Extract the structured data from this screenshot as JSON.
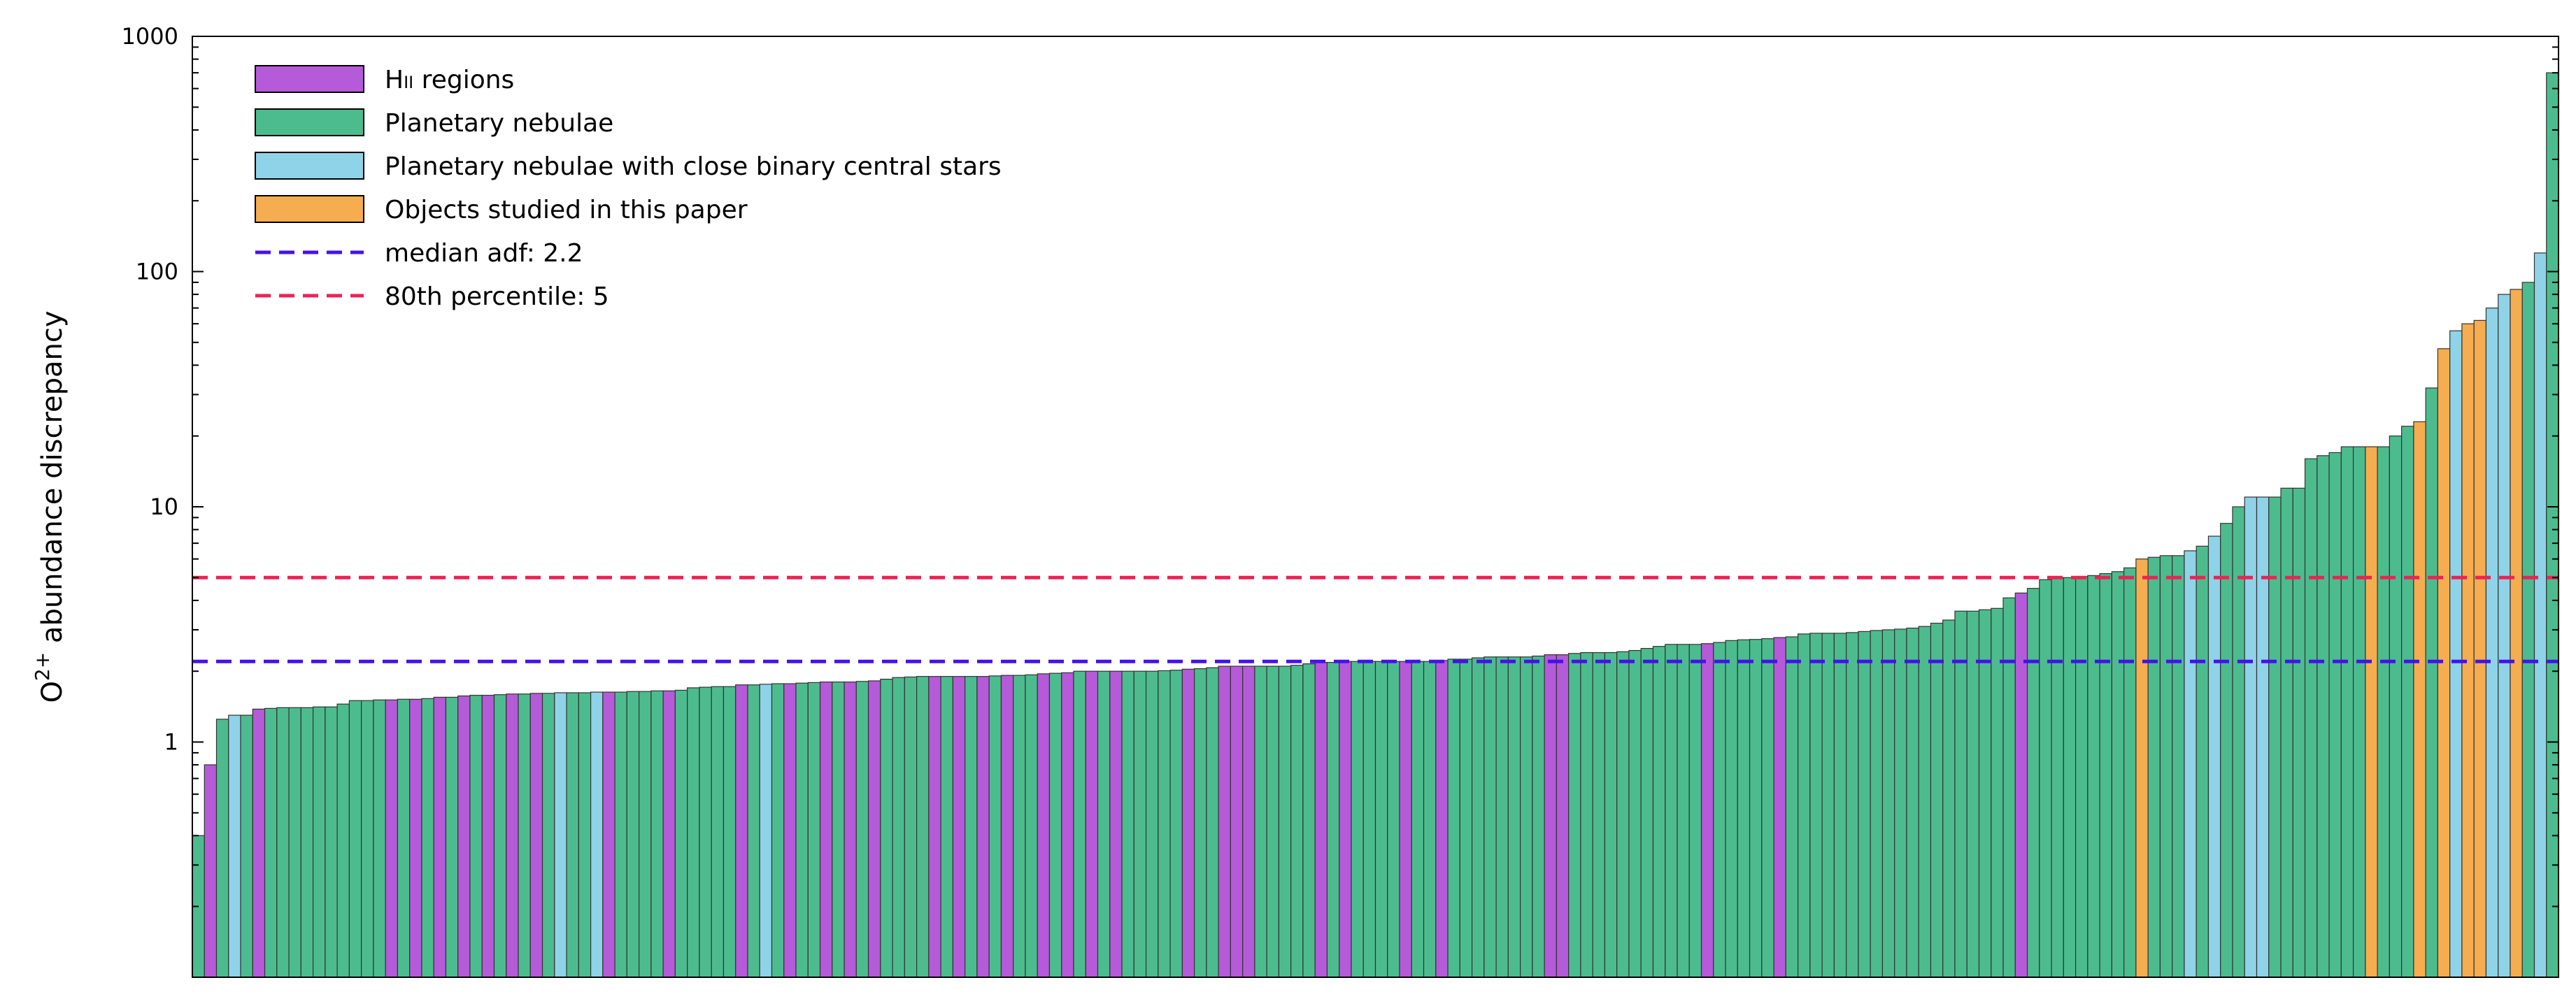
{
  "chart_data": {
    "type": "bar",
    "ylabel": {
      "base": "O",
      "sup": "2+",
      "rest": " abundance discrepancy"
    },
    "yscale": "log",
    "ylim": [
      0.1,
      1000
    ],
    "yticks": [
      {
        "value": 1000,
        "label": "1000"
      },
      {
        "value": 100,
        "label": "100"
      },
      {
        "value": 10,
        "label": "10"
      },
      {
        "value": 1,
        "label": "1"
      }
    ],
    "legend_position": "top-left",
    "colors": {
      "HII": "#b55ad8",
      "PN": "#4cbc8e",
      "CB": "#8fd3e8",
      "TP": "#f5ad50",
      "median": "#4411ee",
      "p80": "#ee2255"
    },
    "legend": [
      {
        "key": "HII",
        "kind": "bar",
        "label": "H",
        "sub": "II",
        "rest": " regions"
      },
      {
        "key": "PN",
        "kind": "bar",
        "label": "Planetary nebulae",
        "sub": "",
        "rest": ""
      },
      {
        "key": "CB",
        "kind": "bar",
        "label": "Planetary nebulae with close binary central stars",
        "sub": "",
        "rest": ""
      },
      {
        "key": "TP",
        "kind": "bar",
        "label": "Objects studied in this paper",
        "sub": "",
        "rest": ""
      },
      {
        "key": "median",
        "kind": "line",
        "label": "median adf: 2.2",
        "sub": "",
        "rest": ""
      },
      {
        "key": "p80",
        "kind": "line",
        "label": "80th percentile: 5",
        "sub": "",
        "rest": ""
      }
    ],
    "reference_lines": [
      {
        "key": "median",
        "value": 2.2
      },
      {
        "key": "p80",
        "value": 5
      }
    ],
    "bars": [
      [
        "PN",
        0.4
      ],
      [
        "HII",
        0.8
      ],
      [
        "PN",
        1.25
      ],
      [
        "CB",
        1.3
      ],
      [
        "PN",
        1.3
      ],
      [
        "HII",
        1.38
      ],
      [
        "PN",
        1.39
      ],
      [
        "PN",
        1.4
      ],
      [
        "PN",
        1.4
      ],
      [
        "PN",
        1.4
      ],
      [
        "PN",
        1.41
      ],
      [
        "PN",
        1.41
      ],
      [
        "PN",
        1.45
      ],
      [
        "PN",
        1.5
      ],
      [
        "PN",
        1.5
      ],
      [
        "PN",
        1.51
      ],
      [
        "HII",
        1.51
      ],
      [
        "PN",
        1.52
      ],
      [
        "HII",
        1.52
      ],
      [
        "PN",
        1.53
      ],
      [
        "HII",
        1.55
      ],
      [
        "PN",
        1.55
      ],
      [
        "HII",
        1.57
      ],
      [
        "PN",
        1.58
      ],
      [
        "HII",
        1.58
      ],
      [
        "PN",
        1.59
      ],
      [
        "HII",
        1.6
      ],
      [
        "PN",
        1.6
      ],
      [
        "HII",
        1.61
      ],
      [
        "PN",
        1.61
      ],
      [
        "CB",
        1.62
      ],
      [
        "PN",
        1.62
      ],
      [
        "PN",
        1.62
      ],
      [
        "CB",
        1.63
      ],
      [
        "HII",
        1.63
      ],
      [
        "PN",
        1.63
      ],
      [
        "PN",
        1.64
      ],
      [
        "PN",
        1.64
      ],
      [
        "PN",
        1.65
      ],
      [
        "HII",
        1.65
      ],
      [
        "PN",
        1.66
      ],
      [
        "PN",
        1.7
      ],
      [
        "PN",
        1.71
      ],
      [
        "PN",
        1.72
      ],
      [
        "PN",
        1.72
      ],
      [
        "HII",
        1.75
      ],
      [
        "PN",
        1.75
      ],
      [
        "CB",
        1.76
      ],
      [
        "PN",
        1.77
      ],
      [
        "HII",
        1.77
      ],
      [
        "PN",
        1.78
      ],
      [
        "PN",
        1.79
      ],
      [
        "HII",
        1.8
      ],
      [
        "PN",
        1.8
      ],
      [
        "HII",
        1.8
      ],
      [
        "PN",
        1.81
      ],
      [
        "HII",
        1.82
      ],
      [
        "PN",
        1.85
      ],
      [
        "PN",
        1.88
      ],
      [
        "PN",
        1.89
      ],
      [
        "PN",
        1.9
      ],
      [
        "HII",
        1.9
      ],
      [
        "PN",
        1.9
      ],
      [
        "HII",
        1.9
      ],
      [
        "PN",
        1.9
      ],
      [
        "HII",
        1.9
      ],
      [
        "PN",
        1.91
      ],
      [
        "HII",
        1.92
      ],
      [
        "PN",
        1.92
      ],
      [
        "PN",
        1.93
      ],
      [
        "HII",
        1.95
      ],
      [
        "PN",
        1.96
      ],
      [
        "HII",
        1.97
      ],
      [
        "PN",
        2.0
      ],
      [
        "HII",
        2.0
      ],
      [
        "PN",
        2.0
      ],
      [
        "HII",
        2.0
      ],
      [
        "PN",
        2.0
      ],
      [
        "PN",
        2.0
      ],
      [
        "PN",
        2.0
      ],
      [
        "PN",
        2.01
      ],
      [
        "PN",
        2.02
      ],
      [
        "HII",
        2.04
      ],
      [
        "PN",
        2.05
      ],
      [
        "PN",
        2.07
      ],
      [
        "HII",
        2.1
      ],
      [
        "HII",
        2.1
      ],
      [
        "HII",
        2.1
      ],
      [
        "PN",
        2.1
      ],
      [
        "PN",
        2.1
      ],
      [
        "PN",
        2.1
      ],
      [
        "PN",
        2.12
      ],
      [
        "PN",
        2.15
      ],
      [
        "HII",
        2.18
      ],
      [
        "PN",
        2.18
      ],
      [
        "HII",
        2.2
      ],
      [
        "PN",
        2.2
      ],
      [
        "PN",
        2.2
      ],
      [
        "PN",
        2.2
      ],
      [
        "PN",
        2.2
      ],
      [
        "HII",
        2.2
      ],
      [
        "PN",
        2.2
      ],
      [
        "PN",
        2.2
      ],
      [
        "HII",
        2.22
      ],
      [
        "PN",
        2.25
      ],
      [
        "PN",
        2.25
      ],
      [
        "PN",
        2.28
      ],
      [
        "PN",
        2.3
      ],
      [
        "PN",
        2.3
      ],
      [
        "PN",
        2.3
      ],
      [
        "PN",
        2.3
      ],
      [
        "PN",
        2.32
      ],
      [
        "HII",
        2.35
      ],
      [
        "HII",
        2.35
      ],
      [
        "PN",
        2.38
      ],
      [
        "PN",
        2.4
      ],
      [
        "PN",
        2.4
      ],
      [
        "PN",
        2.4
      ],
      [
        "PN",
        2.42
      ],
      [
        "PN",
        2.45
      ],
      [
        "PN",
        2.5
      ],
      [
        "PN",
        2.55
      ],
      [
        "PN",
        2.6
      ],
      [
        "PN",
        2.6
      ],
      [
        "PN",
        2.6
      ],
      [
        "HII",
        2.62
      ],
      [
        "PN",
        2.65
      ],
      [
        "PN",
        2.7
      ],
      [
        "PN",
        2.72
      ],
      [
        "PN",
        2.73
      ],
      [
        "PN",
        2.75
      ],
      [
        "HII",
        2.78
      ],
      [
        "PN",
        2.8
      ],
      [
        "PN",
        2.88
      ],
      [
        "PN",
        2.9
      ],
      [
        "PN",
        2.9
      ],
      [
        "PN",
        2.9
      ],
      [
        "PN",
        2.92
      ],
      [
        "PN",
        2.95
      ],
      [
        "PN",
        2.98
      ],
      [
        "PN",
        3.0
      ],
      [
        "PN",
        3.02
      ],
      [
        "PN",
        3.05
      ],
      [
        "PN",
        3.1
      ],
      [
        "PN",
        3.2
      ],
      [
        "PN",
        3.3
      ],
      [
        "PN",
        3.6
      ],
      [
        "PN",
        3.6
      ],
      [
        "PN",
        3.65
      ],
      [
        "PN",
        3.7
      ],
      [
        "PN",
        4.1
      ],
      [
        "HII",
        4.3
      ],
      [
        "PN",
        4.5
      ],
      [
        "PN",
        4.9
      ],
      [
        "PN",
        5.0
      ],
      [
        "PN",
        5.0
      ],
      [
        "PN",
        5.05
      ],
      [
        "PN",
        5.1
      ],
      [
        "PN",
        5.2
      ],
      [
        "PN",
        5.3
      ],
      [
        "PN",
        5.5
      ],
      [
        "TP",
        6.0
      ],
      [
        "PN",
        6.1
      ],
      [
        "PN",
        6.2
      ],
      [
        "PN",
        6.2
      ],
      [
        "CB",
        6.5
      ],
      [
        "PN",
        6.8
      ],
      [
        "CB",
        7.5
      ],
      [
        "PN",
        8.5
      ],
      [
        "PN",
        10.0
      ],
      [
        "CB",
        11.0
      ],
      [
        "CB",
        11.0
      ],
      [
        "PN",
        11.0
      ],
      [
        "PN",
        12.0
      ],
      [
        "PN",
        12.0
      ],
      [
        "PN",
        16.0
      ],
      [
        "PN",
        16.5
      ],
      [
        "PN",
        17.0
      ],
      [
        "PN",
        18.0
      ],
      [
        "PN",
        18.0
      ],
      [
        "TP",
        18.0
      ],
      [
        "PN",
        18.0
      ],
      [
        "PN",
        20.0
      ],
      [
        "PN",
        22.0
      ],
      [
        "TP",
        23.0
      ],
      [
        "PN",
        32.0
      ],
      [
        "TP",
        47.0
      ],
      [
        "CB",
        56.0
      ],
      [
        "TP",
        60.0
      ],
      [
        "TP",
        62.0
      ],
      [
        "CB",
        70.0
      ],
      [
        "CB",
        80.0
      ],
      [
        "TP",
        84.0
      ],
      [
        "PN",
        90.0
      ],
      [
        "CB",
        120.0
      ],
      [
        "PN",
        700.0
      ]
    ]
  }
}
